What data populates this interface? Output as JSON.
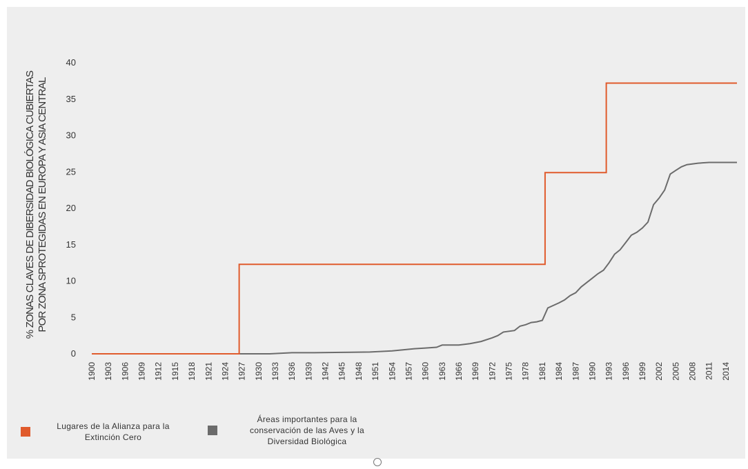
{
  "chart_data": {
    "type": "line",
    "ylabel_line1": "% ZONAS CLAVES DE DIBERSIDAD BIOLÓGICA CUBIERTAS",
    "ylabel_line2": "POR ZONA SPROTEGIDAS EN EUROPA Y ASIA CENTRAL",
    "xlabel": "",
    "ylim": [
      0,
      40
    ],
    "yticks": [
      0,
      5,
      10,
      15,
      20,
      25,
      30,
      35,
      40
    ],
    "xlim": [
      1900,
      2016
    ],
    "xticks": [
      1900,
      1903,
      1906,
      1909,
      1912,
      1915,
      1918,
      1921,
      1924,
      1927,
      1930,
      1933,
      1936,
      1939,
      1942,
      1945,
      1948,
      1951,
      1954,
      1957,
      1960,
      1963,
      1966,
      1969,
      1972,
      1975,
      1978,
      1981,
      1984,
      1987,
      1990,
      1993,
      1996,
      1999,
      2002,
      2005,
      2008,
      2011,
      2014
    ],
    "grid": false,
    "legend_position": "bottom-left",
    "series": [
      {
        "name": "Lugares de la Alianza para la Extinción Cero",
        "color": "#e05a2b",
        "step": true,
        "points": [
          [
            1900,
            0
          ],
          [
            1926.5,
            0
          ],
          [
            1926.5,
            12.3
          ],
          [
            1981.5,
            12.3
          ],
          [
            1981.5,
            24.9
          ],
          [
            1992.5,
            24.9
          ],
          [
            1992.5,
            37.2
          ],
          [
            2016,
            37.2
          ]
        ]
      },
      {
        "name": "Áreas importantes para la conservación de las Aves y la Diversidad Biológica",
        "color": "#6b6b6b",
        "step": false,
        "points": [
          [
            1900,
            0
          ],
          [
            1932,
            0
          ],
          [
            1936,
            0.15
          ],
          [
            1940,
            0.15
          ],
          [
            1945,
            0.2
          ],
          [
            1950,
            0.25
          ],
          [
            1954,
            0.4
          ],
          [
            1958,
            0.7
          ],
          [
            1960,
            0.8
          ],
          [
            1962,
            0.9
          ],
          [
            1963,
            1.2
          ],
          [
            1966,
            1.2
          ],
          [
            1968,
            1.4
          ],
          [
            1970,
            1.7
          ],
          [
            1972,
            2.2
          ],
          [
            1973,
            2.5
          ],
          [
            1974,
            3.0
          ],
          [
            1976,
            3.2
          ],
          [
            1977,
            3.8
          ],
          [
            1978,
            4.0
          ],
          [
            1979,
            4.3
          ],
          [
            1980,
            4.4
          ],
          [
            1981,
            4.6
          ],
          [
            1982,
            6.3
          ],
          [
            1984,
            7.0
          ],
          [
            1985,
            7.4
          ],
          [
            1986,
            8.0
          ],
          [
            1987,
            8.4
          ],
          [
            1988,
            9.2
          ],
          [
            1989,
            9.8
          ],
          [
            1990,
            10.4
          ],
          [
            1991,
            11.0
          ],
          [
            1992,
            11.5
          ],
          [
            1993,
            12.5
          ],
          [
            1994,
            13.7
          ],
          [
            1995,
            14.3
          ],
          [
            1996,
            15.3
          ],
          [
            1997,
            16.3
          ],
          [
            1998,
            16.7
          ],
          [
            1999,
            17.3
          ],
          [
            2000,
            18.1
          ],
          [
            2001,
            20.5
          ],
          [
            2002,
            21.4
          ],
          [
            2003,
            22.5
          ],
          [
            2004,
            24.7
          ],
          [
            2005,
            25.2
          ],
          [
            2006,
            25.7
          ],
          [
            2007,
            26.0
          ],
          [
            2009,
            26.2
          ],
          [
            2011,
            26.3
          ],
          [
            2016,
            26.3
          ]
        ]
      }
    ]
  }
}
